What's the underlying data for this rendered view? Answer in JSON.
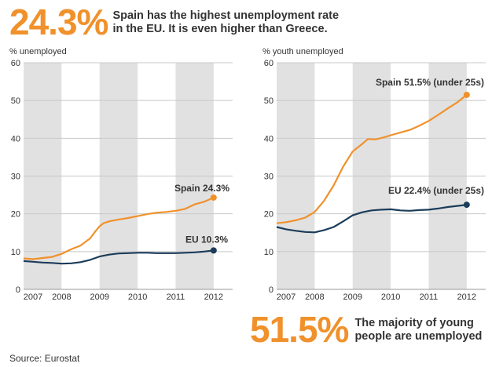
{
  "headline_top": {
    "stat": "24.3%",
    "text": "Spain has the highest unemployment rate\nin the EU. It is even higher than Greece."
  },
  "headline_bottom": {
    "stat": "51.5%",
    "text": "The majority of young\npeople are unemployed"
  },
  "source": "Source: Eurostat",
  "colors": {
    "spain": "#f0912b",
    "eu": "#1c3c5a",
    "band": "#e1e1e1",
    "stat": "#f0912b"
  },
  "chart_data": [
    {
      "type": "line",
      "ylabel": "% unemployed",
      "ylim": [
        0,
        60
      ],
      "yticks": [
        0,
        10,
        20,
        30,
        40,
        50,
        60
      ],
      "xlim": [
        2007,
        2012.5
      ],
      "xticks": [
        2007,
        2008,
        2009,
        2010,
        2011,
        2012
      ],
      "xtick_labels": [
        "2007",
        "2008",
        "2009",
        "2010",
        "2011",
        "2012"
      ],
      "shaded_years": [
        2007,
        2009,
        2011
      ],
      "series": [
        {
          "name": "Spain",
          "label": "Spain 24.3%",
          "color": "#f0912b",
          "points": [
            [
              2007.0,
              8.2
            ],
            [
              2007.25,
              8.0
            ],
            [
              2007.5,
              8.3
            ],
            [
              2007.75,
              8.6
            ],
            [
              2008.0,
              9.4
            ],
            [
              2008.25,
              10.6
            ],
            [
              2008.5,
              11.6
            ],
            [
              2008.75,
              13.5
            ],
            [
              2008.9,
              15.5
            ],
            [
              2009.0,
              16.7
            ],
            [
              2009.1,
              17.5
            ],
            [
              2009.25,
              18.0
            ],
            [
              2009.5,
              18.5
            ],
            [
              2009.75,
              18.9
            ],
            [
              2010.0,
              19.4
            ],
            [
              2010.25,
              19.9
            ],
            [
              2010.5,
              20.3
            ],
            [
              2010.75,
              20.5
            ],
            [
              2011.0,
              20.8
            ],
            [
              2011.25,
              21.3
            ],
            [
              2011.5,
              22.5
            ],
            [
              2011.75,
              23.2
            ],
            [
              2012.0,
              24.3
            ]
          ]
        },
        {
          "name": "EU",
          "label": "EU 10.3%",
          "color": "#1c3c5a",
          "points": [
            [
              2007.0,
              7.5
            ],
            [
              2007.25,
              7.3
            ],
            [
              2007.5,
              7.1
            ],
            [
              2007.75,
              7.0
            ],
            [
              2008.0,
              6.8
            ],
            [
              2008.25,
              6.9
            ],
            [
              2008.5,
              7.2
            ],
            [
              2008.75,
              7.8
            ],
            [
              2009.0,
              8.7
            ],
            [
              2009.25,
              9.2
            ],
            [
              2009.5,
              9.5
            ],
            [
              2009.75,
              9.6
            ],
            [
              2010.0,
              9.7
            ],
            [
              2010.25,
              9.7
            ],
            [
              2010.5,
              9.6
            ],
            [
              2010.75,
              9.6
            ],
            [
              2011.0,
              9.6
            ],
            [
              2011.25,
              9.7
            ],
            [
              2011.5,
              9.8
            ],
            [
              2011.75,
              10.0
            ],
            [
              2012.0,
              10.3
            ]
          ]
        }
      ]
    },
    {
      "type": "line",
      "ylabel": "% youth unemployed",
      "ylim": [
        0,
        60
      ],
      "yticks": [
        0,
        10,
        20,
        30,
        40,
        50,
        60
      ],
      "xlim": [
        2007,
        2012.5
      ],
      "xticks": [
        2007,
        2008,
        2009,
        2010,
        2011,
        2012
      ],
      "xtick_labels": [
        "2007",
        "2008",
        "2009",
        "2010",
        "2011",
        "2012"
      ],
      "shaded_years": [
        2007,
        2009,
        2011
      ],
      "series": [
        {
          "name": "Spain",
          "label": "Spain 51.5% (under 25s)",
          "color": "#f0912b",
          "points": [
            [
              2007.0,
              17.5
            ],
            [
              2007.25,
              17.8
            ],
            [
              2007.5,
              18.3
            ],
            [
              2007.75,
              19.0
            ],
            [
              2008.0,
              20.5
            ],
            [
              2008.25,
              23.5
            ],
            [
              2008.5,
              27.5
            ],
            [
              2008.75,
              32.5
            ],
            [
              2009.0,
              36.5
            ],
            [
              2009.25,
              38.5
            ],
            [
              2009.4,
              39.8
            ],
            [
              2009.6,
              39.7
            ],
            [
              2009.8,
              40.2
            ],
            [
              2010.0,
              40.8
            ],
            [
              2010.25,
              41.5
            ],
            [
              2010.5,
              42.2
            ],
            [
              2010.75,
              43.3
            ],
            [
              2011.0,
              44.6
            ],
            [
              2011.25,
              46.2
            ],
            [
              2011.5,
              47.9
            ],
            [
              2011.75,
              49.5
            ],
            [
              2012.0,
              51.5
            ]
          ]
        },
        {
          "name": "EU",
          "label": "EU 22.4% (under 25s)",
          "color": "#1c3c5a",
          "points": [
            [
              2007.0,
              16.5
            ],
            [
              2007.25,
              15.9
            ],
            [
              2007.5,
              15.5
            ],
            [
              2007.75,
              15.2
            ],
            [
              2008.0,
              15.1
            ],
            [
              2008.25,
              15.7
            ],
            [
              2008.5,
              16.5
            ],
            [
              2008.75,
              18.0
            ],
            [
              2009.0,
              19.6
            ],
            [
              2009.25,
              20.4
            ],
            [
              2009.5,
              20.9
            ],
            [
              2009.75,
              21.1
            ],
            [
              2010.0,
              21.2
            ],
            [
              2010.25,
              20.9
            ],
            [
              2010.5,
              20.8
            ],
            [
              2010.75,
              21.0
            ],
            [
              2011.0,
              21.1
            ],
            [
              2011.25,
              21.4
            ],
            [
              2011.5,
              21.8
            ],
            [
              2011.75,
              22.1
            ],
            [
              2012.0,
              22.4
            ]
          ]
        }
      ]
    }
  ]
}
